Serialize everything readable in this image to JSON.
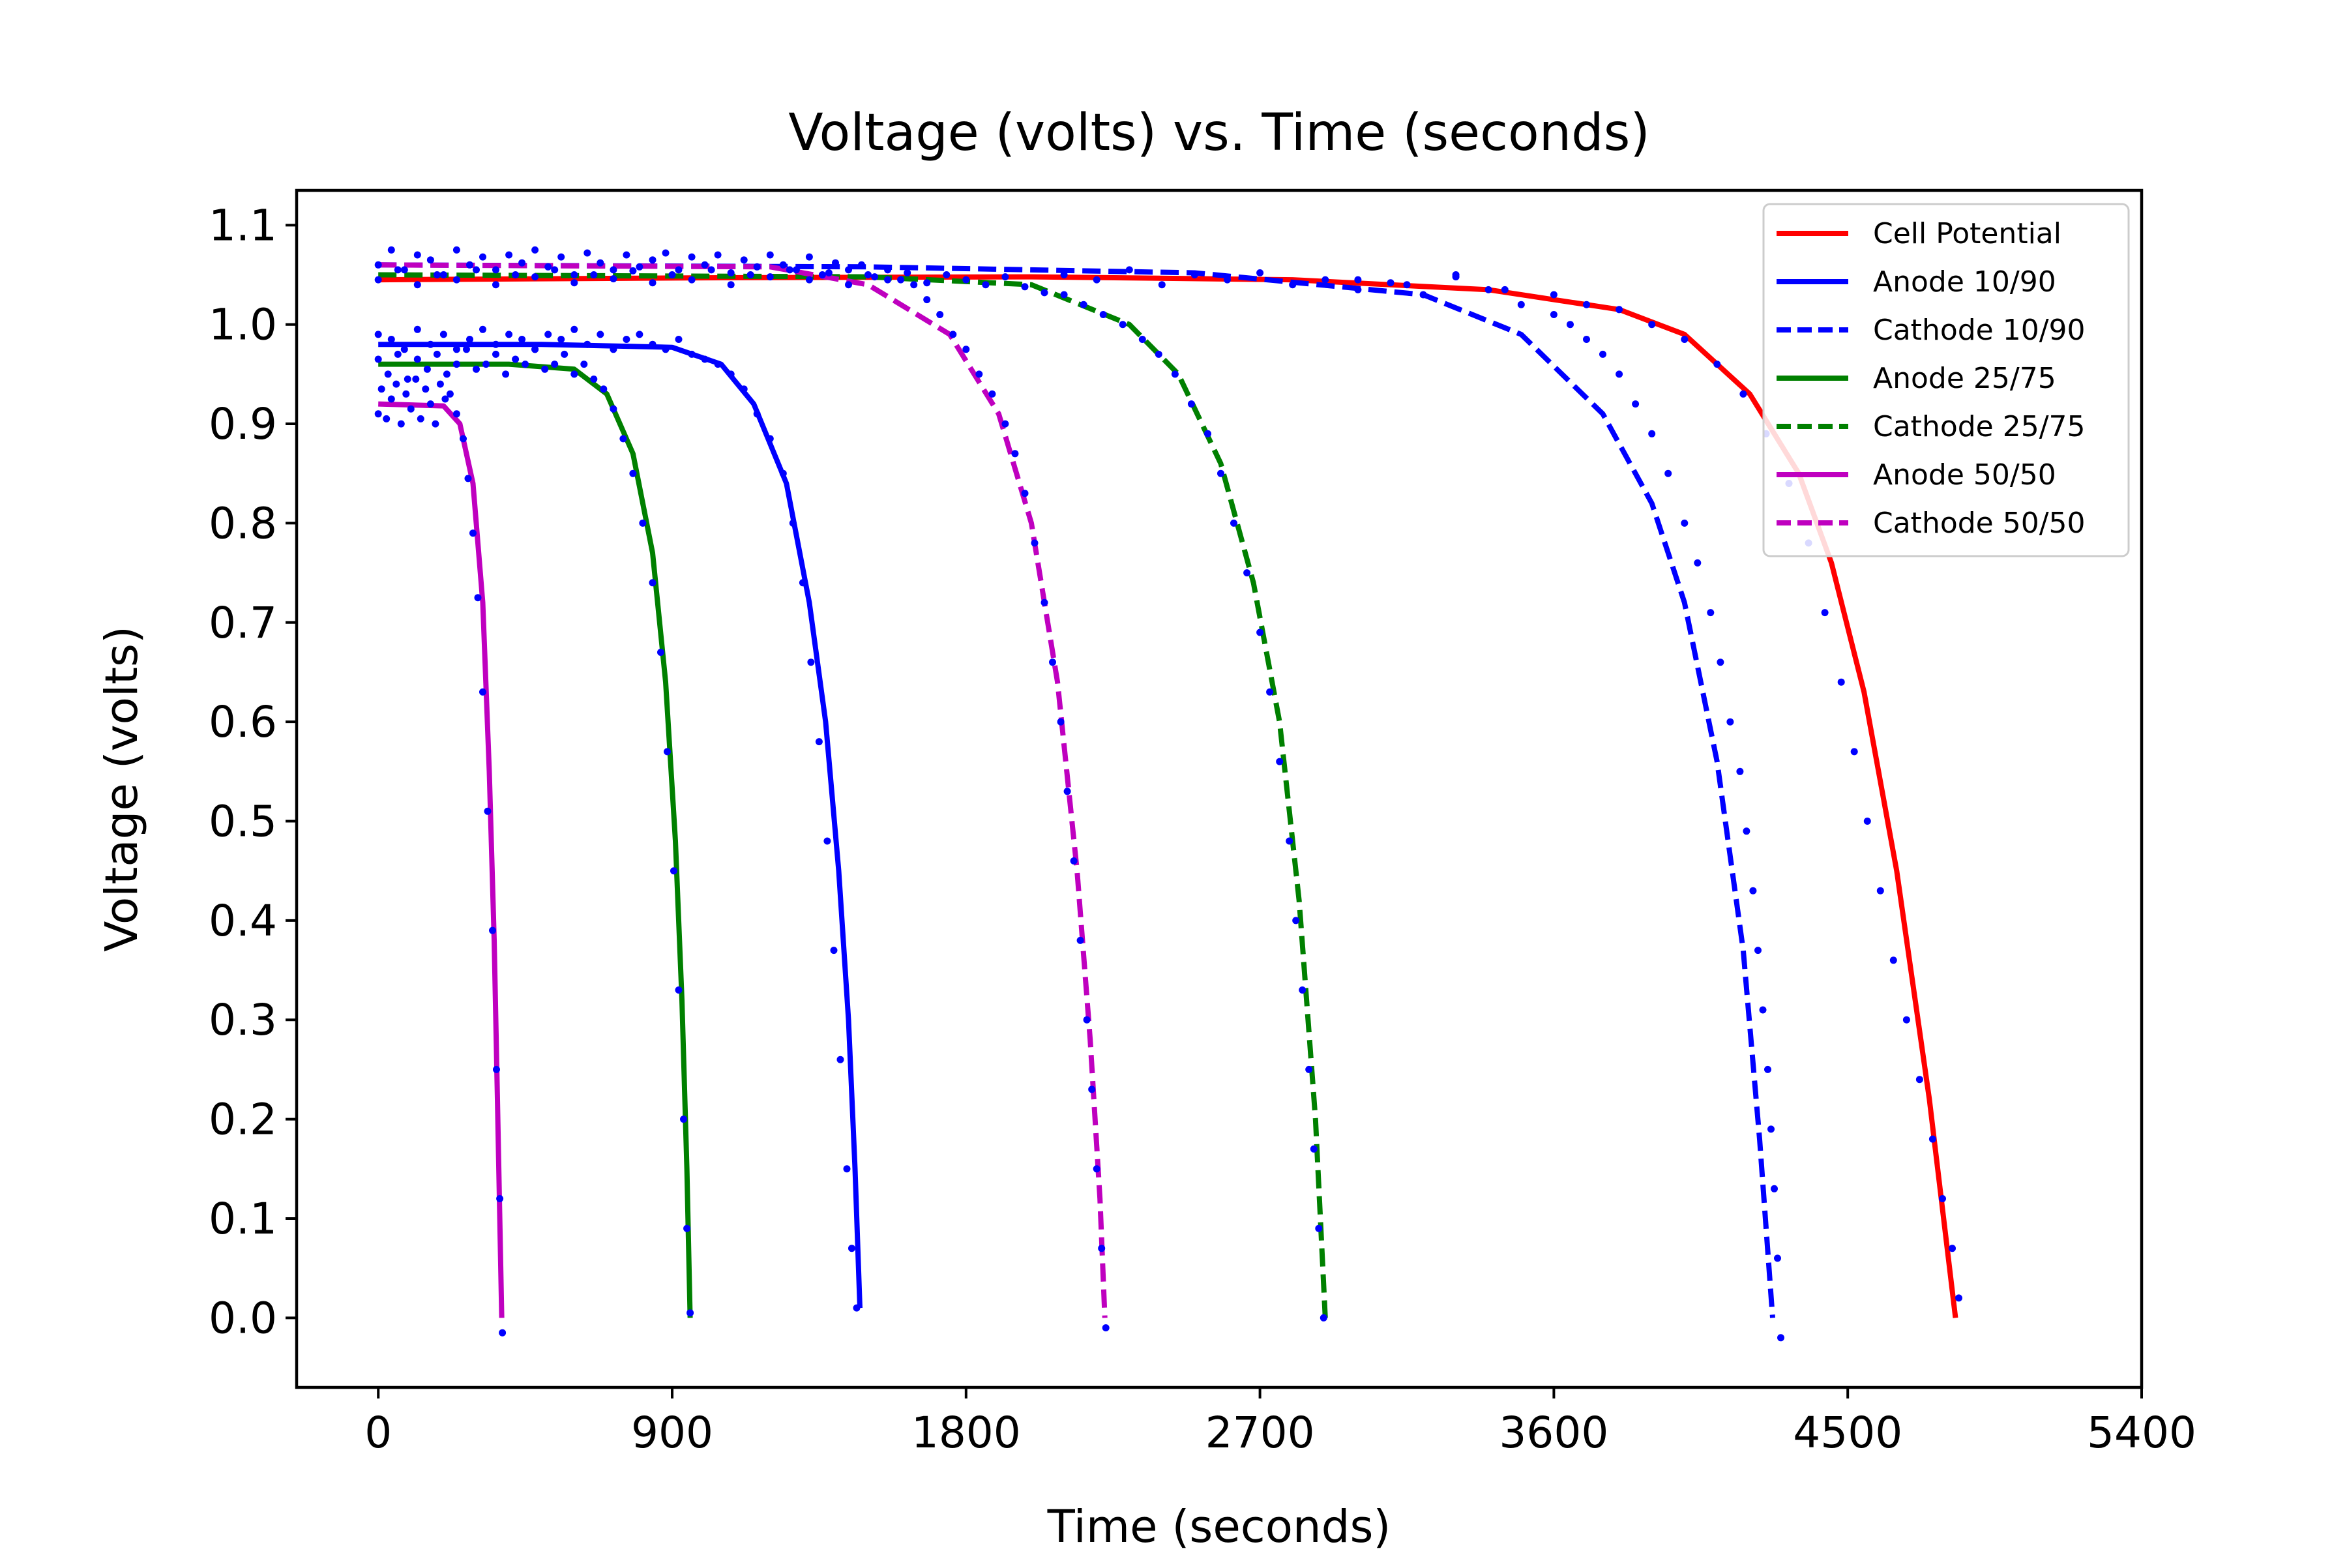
{
  "chart_data": {
    "type": "line",
    "title": "Voltage (volts) vs. Time (seconds)",
    "xlabel": "Time (seconds)",
    "ylabel": "Voltage (volts)",
    "xlim": [
      -250,
      5400
    ],
    "ylim": [
      -0.07,
      1.135
    ],
    "xticks": [
      0,
      900,
      1800,
      2700,
      3600,
      4500,
      5400
    ],
    "yticks": [
      0.0,
      0.1,
      0.2,
      0.3,
      0.4,
      0.5,
      0.6,
      0.7,
      0.8,
      0.9,
      1.0,
      1.1
    ],
    "ytick_labels": [
      "0.0",
      "0.1",
      "0.2",
      "0.3",
      "0.4",
      "0.5",
      "0.6",
      "0.7",
      "0.8",
      "0.9",
      "1.0",
      "1.1"
    ],
    "grid": false,
    "legend_position": "top-right",
    "series": [
      {
        "name": "Cell Potential",
        "color": "#ff0000",
        "dash": "solid",
        "x": [
          0,
          1000,
          2000,
          2800,
          3400,
          3800,
          4000,
          4200,
          4350,
          4450,
          4550,
          4650,
          4750,
          4830
        ],
        "y": [
          1.045,
          1.047,
          1.048,
          1.045,
          1.035,
          1.015,
          0.99,
          0.93,
          0.85,
          0.76,
          0.63,
          0.45,
          0.22,
          0.0
        ]
      },
      {
        "name": "Anode 10/90",
        "color": "#0000ff",
        "dash": "solid",
        "x": [
          0,
          500,
          900,
          1050,
          1150,
          1250,
          1320,
          1370,
          1410,
          1440,
          1460,
          1475
        ],
        "y": [
          0.98,
          0.98,
          0.977,
          0.96,
          0.92,
          0.84,
          0.72,
          0.6,
          0.45,
          0.3,
          0.15,
          0.01
        ]
      },
      {
        "name": "Cathode 10/90",
        "color": "#0000ff",
        "dash": "dashed",
        "x": [
          0,
          1500,
          2500,
          3200,
          3500,
          3750,
          3900,
          4000,
          4100,
          4180,
          4230,
          4270
        ],
        "y": [
          1.06,
          1.058,
          1.052,
          1.03,
          0.99,
          0.91,
          0.82,
          0.72,
          0.56,
          0.37,
          0.18,
          0.0
        ]
      },
      {
        "name": "Anode 25/75",
        "color": "#008000",
        "dash": "solid",
        "x": [
          0,
          400,
          600,
          700,
          780,
          840,
          880,
          910,
          930,
          945,
          955
        ],
        "y": [
          0.96,
          0.96,
          0.955,
          0.93,
          0.87,
          0.77,
          0.64,
          0.48,
          0.32,
          0.15,
          0.0
        ]
      },
      {
        "name": "Cathode 25/75",
        "color": "#008000",
        "dash": "dashed",
        "x": [
          0,
          1500,
          2000,
          2300,
          2450,
          2580,
          2680,
          2760,
          2820,
          2870,
          2900
        ],
        "y": [
          1.05,
          1.048,
          1.04,
          1.0,
          0.95,
          0.86,
          0.74,
          0.6,
          0.42,
          0.2,
          0.0
        ]
      },
      {
        "name": "Anode 50/50",
        "color": "#bf00bf",
        "dash": "solid",
        "x": [
          0,
          200,
          250,
          290,
          320,
          340,
          355,
          365,
          372,
          378
        ],
        "y": [
          0.92,
          0.918,
          0.9,
          0.84,
          0.72,
          0.55,
          0.38,
          0.22,
          0.1,
          0.0
        ]
      },
      {
        "name": "Cathode 50/50",
        "color": "#bf00bf",
        "dash": "dashed",
        "x": [
          0,
          1200,
          1500,
          1750,
          1900,
          2000,
          2080,
          2140,
          2180,
          2210,
          2225
        ],
        "y": [
          1.06,
          1.058,
          1.04,
          0.99,
          0.91,
          0.8,
          0.64,
          0.45,
          0.28,
          0.12,
          0.0
        ]
      }
    ],
    "scatter": {
      "color": "#0000ff",
      "points": [
        [
          0,
          0.91
        ],
        [
          10,
          0.935
        ],
        [
          25,
          0.905
        ],
        [
          40,
          0.925
        ],
        [
          55,
          0.94
        ],
        [
          70,
          0.9
        ],
        [
          85,
          0.93
        ],
        [
          100,
          0.915
        ],
        [
          115,
          0.945
        ],
        [
          130,
          0.905
        ],
        [
          145,
          0.935
        ],
        [
          160,
          0.92
        ],
        [
          175,
          0.9
        ],
        [
          190,
          0.94
        ],
        [
          205,
          0.925
        ],
        [
          220,
          0.93
        ],
        [
          240,
          0.91
        ],
        [
          260,
          0.885
        ],
        [
          275,
          0.845
        ],
        [
          290,
          0.79
        ],
        [
          305,
          0.725
        ],
        [
          320,
          0.63
        ],
        [
          335,
          0.51
        ],
        [
          350,
          0.39
        ],
        [
          362,
          0.25
        ],
        [
          372,
          0.12
        ],
        [
          380,
          -0.015
        ],
        [
          0,
          0.965
        ],
        [
          30,
          0.95
        ],
        [
          60,
          0.97
        ],
        [
          90,
          0.945
        ],
        [
          120,
          0.965
        ],
        [
          150,
          0.955
        ],
        [
          180,
          0.97
        ],
        [
          210,
          0.95
        ],
        [
          240,
          0.96
        ],
        [
          270,
          0.975
        ],
        [
          300,
          0.955
        ],
        [
          330,
          0.96
        ],
        [
          360,
          0.97
        ],
        [
          390,
          0.95
        ],
        [
          420,
          0.965
        ],
        [
          450,
          0.96
        ],
        [
          480,
          0.975
        ],
        [
          510,
          0.955
        ],
        [
          540,
          0.96
        ],
        [
          570,
          0.97
        ],
        [
          600,
          0.95
        ],
        [
          630,
          0.96
        ],
        [
          660,
          0.945
        ],
        [
          690,
          0.935
        ],
        [
          720,
          0.915
        ],
        [
          750,
          0.885
        ],
        [
          780,
          0.85
        ],
        [
          810,
          0.8
        ],
        [
          840,
          0.74
        ],
        [
          865,
          0.67
        ],
        [
          885,
          0.57
        ],
        [
          905,
          0.45
        ],
        [
          920,
          0.33
        ],
        [
          935,
          0.2
        ],
        [
          945,
          0.09
        ],
        [
          955,
          0.005
        ],
        [
          0,
          0.99
        ],
        [
          40,
          0.985
        ],
        [
          80,
          0.975
        ],
        [
          120,
          0.995
        ],
        [
          160,
          0.98
        ],
        [
          200,
          0.99
        ],
        [
          240,
          0.975
        ],
        [
          280,
          0.985
        ],
        [
          320,
          0.995
        ],
        [
          360,
          0.98
        ],
        [
          400,
          0.99
        ],
        [
          440,
          0.985
        ],
        [
          480,
          0.975
        ],
        [
          520,
          0.99
        ],
        [
          560,
          0.985
        ],
        [
          600,
          0.995
        ],
        [
          640,
          0.98
        ],
        [
          680,
          0.99
        ],
        [
          720,
          0.975
        ],
        [
          760,
          0.985
        ],
        [
          800,
          0.99
        ],
        [
          840,
          0.98
        ],
        [
          880,
          0.975
        ],
        [
          920,
          0.985
        ],
        [
          960,
          0.97
        ],
        [
          1000,
          0.965
        ],
        [
          1040,
          0.96
        ],
        [
          1080,
          0.95
        ],
        [
          1120,
          0.935
        ],
        [
          1160,
          0.91
        ],
        [
          1200,
          0.885
        ],
        [
          1240,
          0.85
        ],
        [
          1270,
          0.8
        ],
        [
          1300,
          0.74
        ],
        [
          1325,
          0.66
        ],
        [
          1350,
          0.58
        ],
        [
          1375,
          0.48
        ],
        [
          1395,
          0.37
        ],
        [
          1415,
          0.26
        ],
        [
          1435,
          0.15
        ],
        [
          1450,
          0.07
        ],
        [
          1465,
          0.01
        ],
        [
          0,
          1.06
        ],
        [
          40,
          1.075
        ],
        [
          80,
          1.055
        ],
        [
          120,
          1.07
        ],
        [
          160,
          1.065
        ],
        [
          200,
          1.05
        ],
        [
          240,
          1.075
        ],
        [
          280,
          1.06
        ],
        [
          320,
          1.068
        ],
        [
          360,
          1.055
        ],
        [
          400,
          1.07
        ],
        [
          440,
          1.062
        ],
        [
          480,
          1.075
        ],
        [
          520,
          1.058
        ],
        [
          560,
          1.068
        ],
        [
          600,
          1.05
        ],
        [
          640,
          1.072
        ],
        [
          680,
          1.062
        ],
        [
          720,
          1.055
        ],
        [
          760,
          1.07
        ],
        [
          800,
          1.058
        ],
        [
          840,
          1.065
        ],
        [
          880,
          1.072
        ],
        [
          920,
          1.055
        ],
        [
          960,
          1.068
        ],
        [
          1000,
          1.06
        ],
        [
          1040,
          1.07
        ],
        [
          1080,
          1.052
        ],
        [
          1120,
          1.065
        ],
        [
          1160,
          1.058
        ],
        [
          1200,
          1.07
        ],
        [
          1240,
          1.06
        ],
        [
          1280,
          1.055
        ],
        [
          1320,
          1.068
        ],
        [
          1360,
          1.05
        ],
        [
          1400,
          1.062
        ],
        [
          1440,
          1.055
        ],
        [
          1480,
          1.06
        ],
        [
          1520,
          1.048
        ],
        [
          1560,
          1.055
        ],
        [
          1600,
          1.045
        ],
        [
          1640,
          1.04
        ],
        [
          1680,
          1.025
        ],
        [
          1720,
          1.01
        ],
        [
          1760,
          0.99
        ],
        [
          1800,
          0.975
        ],
        [
          1840,
          0.95
        ],
        [
          1880,
          0.93
        ],
        [
          1920,
          0.9
        ],
        [
          1950,
          0.87
        ],
        [
          1980,
          0.83
        ],
        [
          2010,
          0.78
        ],
        [
          2040,
          0.72
        ],
        [
          2065,
          0.66
        ],
        [
          2090,
          0.6
        ],
        [
          2110,
          0.53
        ],
        [
          2130,
          0.46
        ],
        [
          2150,
          0.38
        ],
        [
          2170,
          0.3
        ],
        [
          2185,
          0.23
        ],
        [
          2200,
          0.15
        ],
        [
          2215,
          0.07
        ],
        [
          2228,
          -0.01
        ],
        [
          0,
          1.045
        ],
        [
          60,
          1.055
        ],
        [
          120,
          1.04
        ],
        [
          180,
          1.05
        ],
        [
          240,
          1.045
        ],
        [
          300,
          1.055
        ],
        [
          360,
          1.04
        ],
        [
          420,
          1.05
        ],
        [
          480,
          1.048
        ],
        [
          540,
          1.055
        ],
        [
          600,
          1.042
        ],
        [
          660,
          1.05
        ],
        [
          720,
          1.046
        ],
        [
          780,
          1.054
        ],
        [
          840,
          1.042
        ],
        [
          900,
          1.05
        ],
        [
          960,
          1.045
        ],
        [
          1020,
          1.055
        ],
        [
          1080,
          1.04
        ],
        [
          1140,
          1.05
        ],
        [
          1200,
          1.048
        ],
        [
          1260,
          1.055
        ],
        [
          1320,
          1.045
        ],
        [
          1380,
          1.052
        ],
        [
          1440,
          1.04
        ],
        [
          1500,
          1.05
        ],
        [
          1560,
          1.045
        ],
        [
          1620,
          1.052
        ],
        [
          1680,
          1.042
        ],
        [
          1740,
          1.05
        ],
        [
          1800,
          1.045
        ],
        [
          1860,
          1.04
        ],
        [
          1920,
          1.048
        ],
        [
          1980,
          1.038
        ],
        [
          2040,
          1.032
        ],
        [
          2100,
          1.03
        ],
        [
          2160,
          1.02
        ],
        [
          2220,
          1.01
        ],
        [
          2280,
          1.0
        ],
        [
          2340,
          0.985
        ],
        [
          2390,
          0.97
        ],
        [
          2440,
          0.95
        ],
        [
          2490,
          0.92
        ],
        [
          2540,
          0.89
        ],
        [
          2580,
          0.85
        ],
        [
          2620,
          0.8
        ],
        [
          2660,
          0.75
        ],
        [
          2700,
          0.69
        ],
        [
          2730,
          0.63
        ],
        [
          2760,
          0.56
        ],
        [
          2790,
          0.48
        ],
        [
          2810,
          0.4
        ],
        [
          2830,
          0.33
        ],
        [
          2850,
          0.25
        ],
        [
          2865,
          0.17
        ],
        [
          2880,
          0.09
        ],
        [
          2895,
          0.0
        ],
        [
          2100,
          1.05
        ],
        [
          2200,
          1.045
        ],
        [
          2300,
          1.055
        ],
        [
          2400,
          1.04
        ],
        [
          2500,
          1.05
        ],
        [
          2600,
          1.045
        ],
        [
          2700,
          1.052
        ],
        [
          2800,
          1.04
        ],
        [
          2900,
          1.045
        ],
        [
          3000,
          1.035
        ],
        [
          3100,
          1.042
        ],
        [
          3200,
          1.03
        ],
        [
          3300,
          1.05
        ],
        [
          3400,
          1.035
        ],
        [
          3500,
          1.02
        ],
        [
          3600,
          1.01
        ],
        [
          3650,
          1.0
        ],
        [
          3700,
          0.985
        ],
        [
          3750,
          0.97
        ],
        [
          3800,
          0.95
        ],
        [
          3850,
          0.92
        ],
        [
          3900,
          0.89
        ],
        [
          3950,
          0.85
        ],
        [
          4000,
          0.8
        ],
        [
          4040,
          0.76
        ],
        [
          4080,
          0.71
        ],
        [
          4110,
          0.66
        ],
        [
          4140,
          0.6
        ],
        [
          4170,
          0.55
        ],
        [
          4190,
          0.49
        ],
        [
          4210,
          0.43
        ],
        [
          4225,
          0.37
        ],
        [
          4240,
          0.31
        ],
        [
          4255,
          0.25
        ],
        [
          4265,
          0.19
        ],
        [
          4275,
          0.13
        ],
        [
          4285,
          0.06
        ],
        [
          4295,
          -0.02
        ],
        [
          3000,
          1.045
        ],
        [
          3150,
          1.04
        ],
        [
          3300,
          1.048
        ],
        [
          3450,
          1.035
        ],
        [
          3600,
          1.03
        ],
        [
          3700,
          1.02
        ],
        [
          3800,
          1.015
        ],
        [
          3900,
          1.0
        ],
        [
          4000,
          0.985
        ],
        [
          4100,
          0.96
        ],
        [
          4180,
          0.93
        ],
        [
          4250,
          0.89
        ],
        [
          4320,
          0.84
        ],
        [
          4380,
          0.78
        ],
        [
          4430,
          0.71
        ],
        [
          4480,
          0.64
        ],
        [
          4520,
          0.57
        ],
        [
          4560,
          0.5
        ],
        [
          4600,
          0.43
        ],
        [
          4640,
          0.36
        ],
        [
          4680,
          0.3
        ],
        [
          4720,
          0.24
        ],
        [
          4760,
          0.18
        ],
        [
          4790,
          0.12
        ],
        [
          4820,
          0.07
        ],
        [
          4840,
          0.02
        ]
      ]
    }
  }
}
